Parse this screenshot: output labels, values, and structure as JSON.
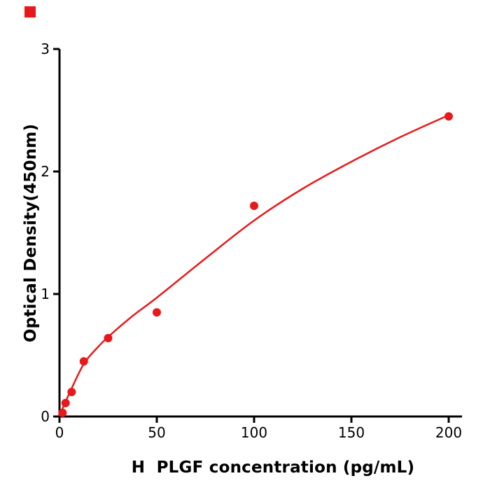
{
  "decorations": {
    "corner_marker": {
      "color": "#e8191a"
    }
  },
  "chart_data": {
    "type": "scatter",
    "title": "",
    "xlabel": "H  PLGF concentration (pg/mL)",
    "ylabel": "Optical Density(450nm)",
    "x_ticks": [
      0,
      50,
      100,
      150,
      200
    ],
    "y_ticks": [
      0,
      1,
      2,
      3
    ],
    "xlim": [
      0,
      207
    ],
    "ylim": [
      0,
      3
    ],
    "grid": false,
    "legend": "none",
    "axis_color": "#000000",
    "point_color": "#e8191a",
    "line_color": "#e8191a",
    "points": [
      {
        "x": 1.5625,
        "y": 0.03
      },
      {
        "x": 3.125,
        "y": 0.11
      },
      {
        "x": 6.25,
        "y": 0.2
      },
      {
        "x": 12.5,
        "y": 0.45
      },
      {
        "x": 25,
        "y": 0.64
      },
      {
        "x": 50,
        "y": 0.85
      },
      {
        "x": 100,
        "y": 1.72
      },
      {
        "x": 200,
        "y": 2.45
      }
    ],
    "fit_curve": [
      [
        0,
        0.01
      ],
      [
        3.125,
        0.12
      ],
      [
        6.25,
        0.23
      ],
      [
        12.5,
        0.43
      ],
      [
        18.75,
        0.55
      ],
      [
        25,
        0.65
      ],
      [
        37.5,
        0.82
      ],
      [
        50,
        0.97
      ],
      [
        75,
        1.29
      ],
      [
        100,
        1.6
      ],
      [
        125,
        1.86
      ],
      [
        150,
        2.08
      ],
      [
        175,
        2.28
      ],
      [
        200,
        2.46
      ]
    ]
  }
}
